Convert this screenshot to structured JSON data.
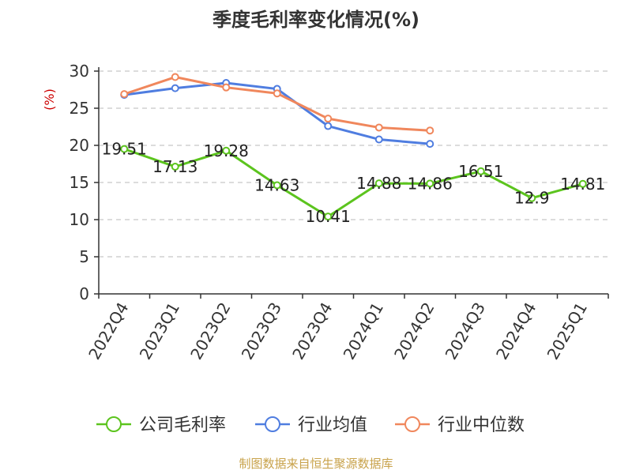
{
  "chart_data": {
    "type": "line",
    "title": "季度毛利率变化情况(%)",
    "ylabel": "(%)",
    "ylim": [
      0,
      30
    ],
    "yticks": [
      0,
      5,
      10,
      15,
      20,
      25,
      30
    ],
    "grid": true,
    "legend_position": "bottom",
    "categories": [
      "2022Q4",
      "2023Q1",
      "2023Q2",
      "2023Q3",
      "2023Q4",
      "2024Q1",
      "2024Q2",
      "2024Q3",
      "2024Q4",
      "2025Q1"
    ],
    "series": [
      {
        "name": "公司毛利率",
        "color": "#5cc41e",
        "labeled": true,
        "values": [
          19.51,
          17.13,
          19.28,
          14.63,
          10.41,
          14.88,
          14.86,
          16.51,
          12.9,
          14.81
        ]
      },
      {
        "name": "行业均值",
        "color": "#4f7de0",
        "labeled": false,
        "values": [
          26.8,
          27.7,
          28.4,
          27.6,
          22.6,
          20.8,
          20.2,
          null,
          null,
          null
        ]
      },
      {
        "name": "行业中位数",
        "color": "#f0875c",
        "labeled": false,
        "values": [
          26.9,
          29.2,
          27.8,
          27.0,
          23.6,
          22.4,
          22.0,
          null,
          null,
          null
        ]
      }
    ]
  },
  "source": "制图数据来自恒生聚源数据库"
}
